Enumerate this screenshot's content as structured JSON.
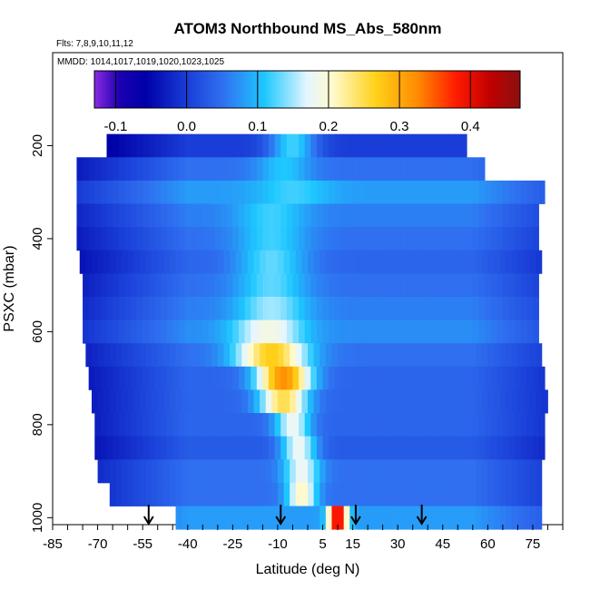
{
  "chart_data": {
    "type": "heatmap",
    "title": "ATOM3 Northbound MS_Abs_580nm",
    "flights_note": "Flts: 7,8,9,10,11,12",
    "dates_note": "MMDD: 1014,1017,1019,1020,1023,1025",
    "xlabel": "Latitude (deg N)",
    "ylabel": "PSXC (mbar)",
    "xlim": [
      -85,
      85
    ],
    "ylim": [
      1015,
      0
    ],
    "x_ticks": [
      -85,
      -70,
      -55,
      -40,
      -25,
      -10,
      5,
      15,
      30,
      45,
      60,
      75
    ],
    "y_ticks": [
      200,
      400,
      600,
      800,
      1000
    ],
    "colorbar": {
      "min": -0.13,
      "max": 0.47,
      "ticks": [
        -0.1,
        0.0,
        0.1,
        0.2,
        0.3,
        0.4
      ],
      "tick_labels": [
        "-0.1",
        "0.0",
        "0.1",
        "0.2",
        "0.3",
        "0.4"
      ]
    },
    "sounding_latitudes": [
      -53,
      -9,
      16,
      38
    ],
    "p_levels": [
      200,
      250,
      300,
      350,
      400,
      450,
      500,
      550,
      600,
      650,
      700,
      750,
      800,
      850,
      900,
      950,
      1000
    ],
    "row_lat_extent": [
      [
        -67,
        52
      ],
      [
        -77,
        59
      ],
      [
        -77,
        78
      ],
      [
        -77,
        76
      ],
      [
        -77,
        77
      ],
      [
        -76,
        77
      ],
      [
        -75,
        77
      ],
      [
        -75,
        77
      ],
      [
        -75,
        77
      ],
      [
        -74,
        78
      ],
      [
        -73,
        79
      ],
      [
        -72,
        79
      ],
      [
        -71,
        78
      ],
      [
        -71,
        78
      ],
      [
        -70,
        78
      ],
      [
        -66,
        78
      ],
      [
        -44,
        78
      ]
    ],
    "background_value_by_level": [
      0.0,
      0.05,
      0.08,
      0.06,
      0.05,
      0.04,
      0.05,
      0.06,
      0.07,
      0.05,
      0.04,
      0.04,
      0.04,
      0.03,
      0.05,
      0.05,
      0.08
    ],
    "plume_center_lat_by_level": [
      -5,
      -8,
      -5,
      -12,
      -12,
      -12,
      -12,
      -12,
      -13,
      -12,
      -8,
      -8,
      -5,
      -3,
      -2,
      -2,
      10
    ],
    "plume_peak_value_by_level": [
      0.12,
      0.11,
      0.12,
      0.12,
      0.12,
      0.13,
      0.13,
      0.15,
      0.19,
      0.27,
      0.32,
      0.25,
      0.18,
      0.18,
      0.18,
      0.21,
      0.42
    ],
    "plume_width_deg_by_level": [
      8,
      9,
      12,
      12,
      12,
      12,
      12,
      12,
      12,
      12,
      9,
      8,
      6,
      6,
      6,
      5,
      3
    ]
  }
}
